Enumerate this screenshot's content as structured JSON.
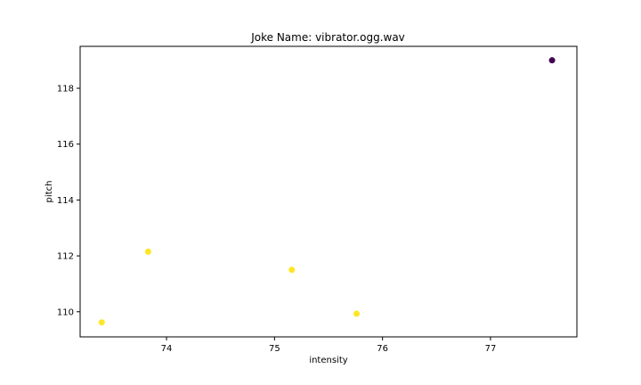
{
  "chart_data": {
    "type": "scatter",
    "title": "Joke Name: vibrator.ogg.wav",
    "xlabel": "intensity",
    "ylabel": "pitch",
    "xlim": [
      73.2,
      77.8
    ],
    "ylim": [
      109.1,
      119.5
    ],
    "xticks": [
      74,
      75,
      76,
      77
    ],
    "yticks": [
      110,
      112,
      114,
      116,
      118
    ],
    "grid": false,
    "legend": "none",
    "points": [
      {
        "x": 73.4,
        "y": 109.62,
        "color": "#fde725"
      },
      {
        "x": 73.83,
        "y": 112.15,
        "color": "#fde725"
      },
      {
        "x": 75.16,
        "y": 111.5,
        "color": "#fde725"
      },
      {
        "x": 75.76,
        "y": 109.93,
        "color": "#fde725"
      },
      {
        "x": 77.57,
        "y": 119.0,
        "color": "#440154"
      }
    ]
  }
}
